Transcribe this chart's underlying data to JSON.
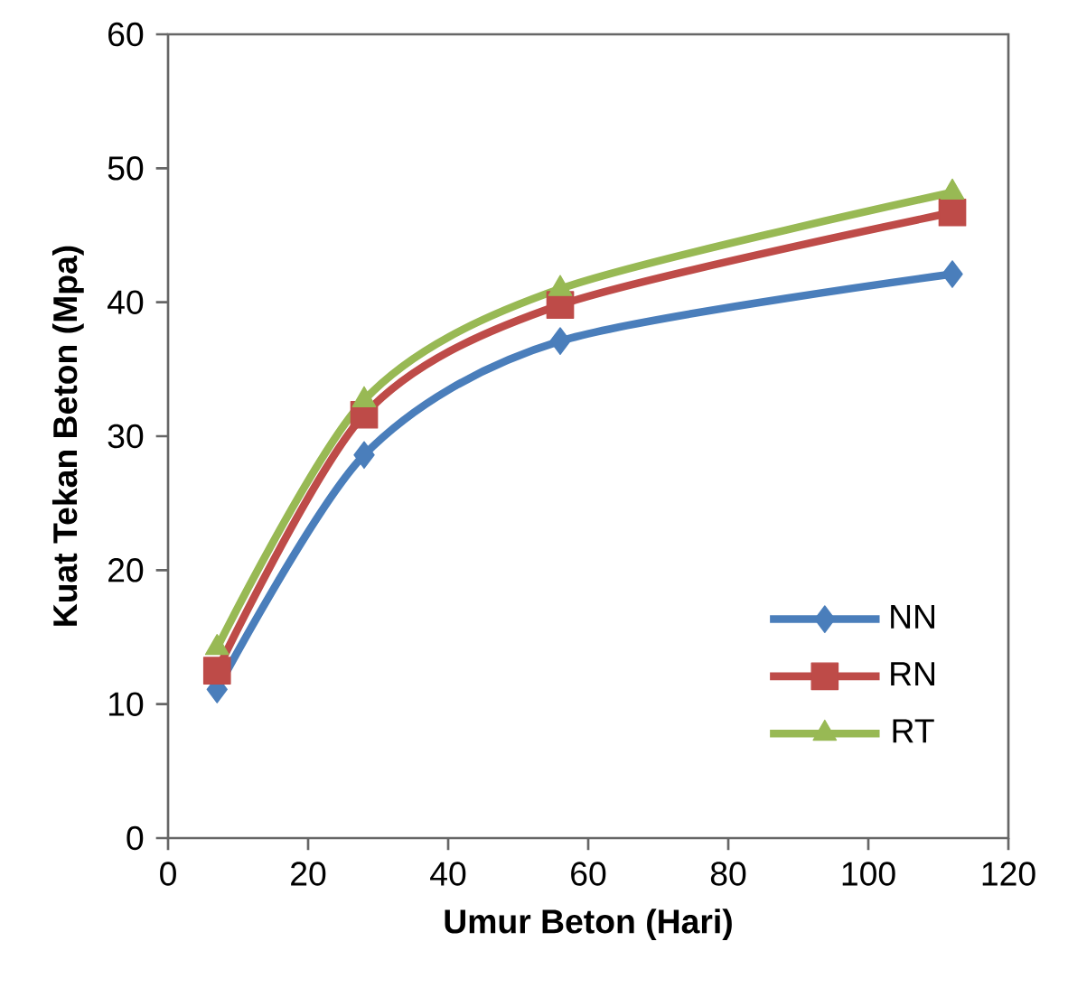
{
  "chart_data": {
    "type": "line",
    "xlabel": "Umur Beton (Hari)",
    "ylabel": "Kuat Tekan Beton (Mpa)",
    "x": [
      7,
      28,
      56,
      112
    ],
    "series": [
      {
        "name": "NN",
        "color": "#4a7ebb",
        "marker": "diamond",
        "values": [
          11.1,
          28.6,
          37.1,
          42.1
        ]
      },
      {
        "name": "RN",
        "color": "#be4b48",
        "marker": "square",
        "values": [
          12.5,
          31.6,
          39.8,
          46.7
        ]
      },
      {
        "name": "RT",
        "color": "#98b954",
        "marker": "triangle",
        "values": [
          14.2,
          32.7,
          41.0,
          48.2
        ]
      }
    ],
    "xlim": [
      0,
      120
    ],
    "ylim": [
      0,
      60
    ],
    "xticks": [
      0,
      20,
      40,
      60,
      80,
      100,
      120
    ],
    "yticks": [
      0,
      10,
      20,
      30,
      40,
      50,
      60
    ],
    "grid": false,
    "legend": "bottom right",
    "line_style": "solid"
  }
}
